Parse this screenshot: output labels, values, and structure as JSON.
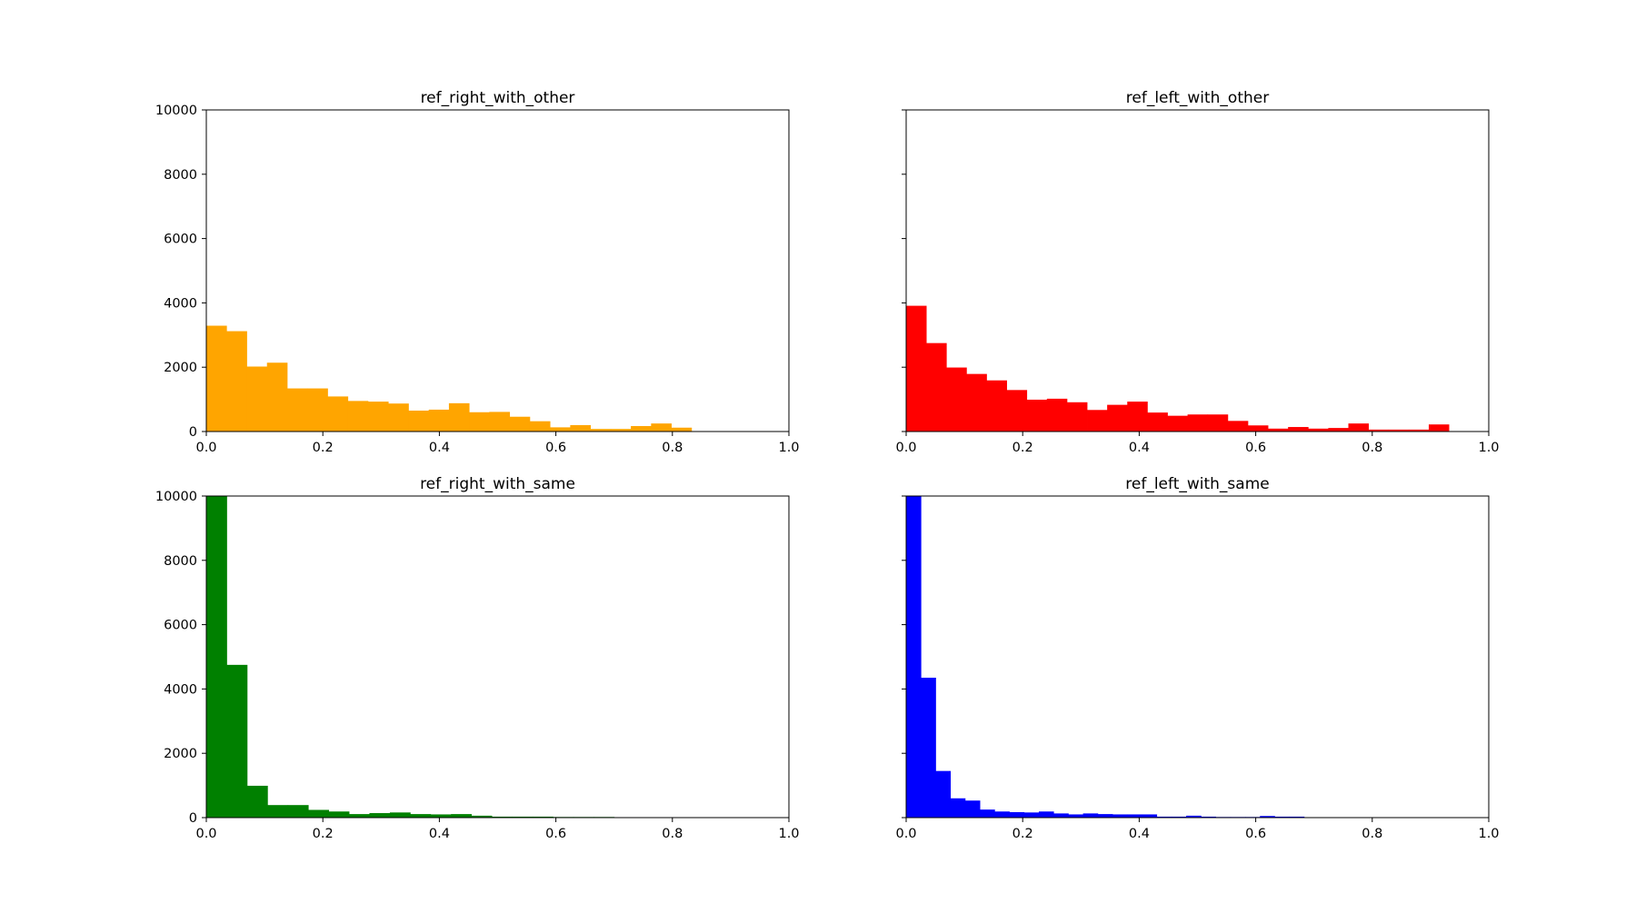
{
  "chart_data": [
    {
      "type": "bar",
      "title": "ref_right_with_other",
      "color": "#ffa500",
      "xlim": [
        0,
        1
      ],
      "ylim": [
        0,
        10000
      ],
      "x_ticks": [
        "0.0",
        "0.2",
        "0.4",
        "0.6",
        "0.8",
        "1.0"
      ],
      "y_ticks": [
        "0",
        "2000",
        "4000",
        "6000",
        "8000",
        "10000"
      ],
      "bin_edges": [
        0,
        0.0347,
        0.0694,
        0.1041,
        0.1388,
        0.1735,
        0.2082,
        0.2429,
        0.2776,
        0.3123,
        0.347,
        0.3817,
        0.4164,
        0.4511,
        0.4858,
        0.5205,
        0.5552,
        0.5899,
        0.6246,
        0.6593,
        0.694,
        0.7287,
        0.7634,
        0.7981,
        0.8328
      ],
      "values": [
        3290,
        3120,
        2020,
        2140,
        1340,
        1340,
        1090,
        950,
        930,
        870,
        650,
        680,
        880,
        600,
        610,
        460,
        320,
        130,
        200,
        80,
        80,
        170,
        250,
        120
      ]
    },
    {
      "type": "bar",
      "title": "ref_left_with_other",
      "color": "#ff0000",
      "xlim": [
        0,
        1
      ],
      "ylim": [
        0,
        10000
      ],
      "x_ticks": [
        "0.0",
        "0.2",
        "0.4",
        "0.6",
        "0.8",
        "1.0"
      ],
      "y_ticks": [],
      "bin_edges": [
        0,
        0.0345,
        0.069,
        0.1035,
        0.138,
        0.1725,
        0.207,
        0.2415,
        0.276,
        0.3105,
        0.345,
        0.3795,
        0.414,
        0.4485,
        0.483,
        0.5175,
        0.552,
        0.5865,
        0.621,
        0.6555,
        0.69,
        0.7245,
        0.759,
        0.7935,
        0.828,
        0.8625,
        0.897,
        0.9315
      ],
      "values": [
        3910,
        2750,
        1990,
        1790,
        1590,
        1290,
        990,
        1020,
        910,
        670,
        830,
        930,
        590,
        490,
        530,
        530,
        330,
        190,
        90,
        140,
        90,
        110,
        250,
        60,
        60,
        60,
        220
      ]
    },
    {
      "type": "bar",
      "title": "ref_right_with_same",
      "color": "#008000",
      "xlim": [
        0,
        1
      ],
      "ylim": [
        0,
        10000
      ],
      "x_ticks": [
        "0.0",
        "0.2",
        "0.4",
        "0.6",
        "0.8",
        "1.0"
      ],
      "y_ticks": [
        "0",
        "2000",
        "4000",
        "6000",
        "8000",
        "10000"
      ],
      "bin_edges": [
        0,
        0.035,
        0.07,
        0.105,
        0.14,
        0.175,
        0.21,
        0.245,
        0.28,
        0.315,
        0.35,
        0.385,
        0.42,
        0.455,
        0.49,
        0.525,
        0.56,
        0.595,
        0.63,
        0.665,
        0.7
      ],
      "values": [
        10000,
        4750,
        990,
        390,
        390,
        240,
        190,
        110,
        140,
        160,
        110,
        100,
        110,
        60,
        30,
        30,
        30,
        20,
        20,
        20
      ]
    },
    {
      "type": "bar",
      "title": "ref_left_with_same",
      "color": "#0000ff",
      "xlim": [
        0,
        1
      ],
      "ylim": [
        0,
        10000
      ],
      "x_ticks": [
        "0.0",
        "0.2",
        "0.4",
        "0.6",
        "0.8",
        "1.0"
      ],
      "y_ticks": [],
      "bin_edges": [
        0,
        0.0253,
        0.0506,
        0.0759,
        0.1012,
        0.1265,
        0.1518,
        0.1771,
        0.2024,
        0.2277,
        0.253,
        0.2783,
        0.3036,
        0.3289,
        0.3542,
        0.3795,
        0.4048,
        0.4301,
        0.4554,
        0.4807,
        0.506,
        0.5313,
        0.5566,
        0.5819,
        0.6072,
        0.6325,
        0.6578,
        0.6831
      ],
      "values": [
        10000,
        4350,
        1450,
        600,
        530,
        250,
        190,
        170,
        160,
        190,
        130,
        100,
        130,
        110,
        100,
        100,
        100,
        30,
        30,
        60,
        30,
        20,
        20,
        20,
        50,
        30,
        30
      ]
    }
  ]
}
